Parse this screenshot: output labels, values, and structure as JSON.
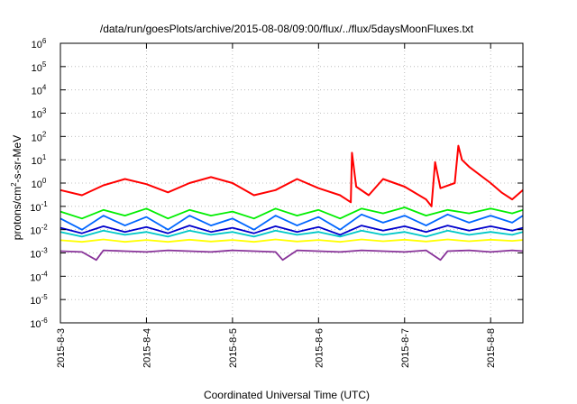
{
  "chart_data": {
    "type": "line",
    "title": "/data/run/goesPlots/archive/2015-08-08/09:00/flux/../flux/5daysMoonFluxes.txt",
    "xlabel": "Coordinated Universal Time (UTC)",
    "ylabel": "protons/cm²-s-sr-MeV",
    "yscale": "log",
    "ylim": [
      1e-06,
      1000000.0
    ],
    "xlim": [
      "2015-08-03T00:00",
      "2015-08-08T09:00"
    ],
    "grid": true,
    "legend": "none",
    "x_ticks": [
      "2015-8-3",
      "2015-8-4",
      "2015-8-5",
      "2015-8-6",
      "2015-8-7",
      "2015-8-8"
    ],
    "y_ticks": [
      {
        "base": "10",
        "exp": "-6"
      },
      {
        "base": "10",
        "exp": "-5"
      },
      {
        "base": "10",
        "exp": "-4"
      },
      {
        "base": "10",
        "exp": "-3"
      },
      {
        "base": "10",
        "exp": "-2"
      },
      {
        "base": "10",
        "exp": "-1"
      },
      {
        "base": "10",
        "exp": "0"
      },
      {
        "base": "10",
        "exp": "1"
      },
      {
        "base": "10",
        "exp": "2"
      },
      {
        "base": "10",
        "exp": "3"
      },
      {
        "base": "10",
        "exp": "4"
      },
      {
        "base": "10",
        "exp": "5"
      },
      {
        "base": "10",
        "exp": "6"
      }
    ],
    "series": [
      {
        "color": "#ff0000",
        "x": [
          "2015-08-03T00:00",
          "2015-08-03T06:00",
          "2015-08-03T12:00",
          "2015-08-03T18:00",
          "2015-08-04T00:00",
          "2015-08-04T06:00",
          "2015-08-04T12:00",
          "2015-08-04T18:00",
          "2015-08-05T00:00",
          "2015-08-05T06:00",
          "2015-08-05T12:00",
          "2015-08-05T18:00",
          "2015-08-06T00:00",
          "2015-08-06T06:00",
          "2015-08-06T09:00",
          "2015-08-06T09:20",
          "2015-08-06T10:30",
          "2015-08-06T14:00",
          "2015-08-06T18:00",
          "2015-08-07T00:00",
          "2015-08-07T06:00",
          "2015-08-07T07:30",
          "2015-08-07T08:30",
          "2015-08-07T10:00",
          "2015-08-07T14:00",
          "2015-08-07T15:00",
          "2015-08-07T16:00",
          "2015-08-07T18:00",
          "2015-08-08T00:00",
          "2015-08-08T03:00",
          "2015-08-08T06:00",
          "2015-08-08T09:00"
        ],
        "y": [
          0.5,
          0.3,
          0.8,
          1.5,
          0.9,
          0.4,
          1.0,
          1.8,
          1.0,
          0.3,
          0.5,
          1.5,
          0.6,
          0.3,
          0.15,
          20,
          0.7,
          0.3,
          1.5,
          0.7,
          0.2,
          0.1,
          8,
          0.6,
          1.0,
          40,
          10,
          5,
          1.0,
          0.4,
          0.2,
          0.5
        ]
      },
      {
        "color": "#00ee00",
        "x": [
          "2015-08-03T00:00",
          "2015-08-03T06:00",
          "2015-08-03T12:00",
          "2015-08-03T18:00",
          "2015-08-04T00:00",
          "2015-08-04T06:00",
          "2015-08-04T12:00",
          "2015-08-04T18:00",
          "2015-08-05T00:00",
          "2015-08-05T06:00",
          "2015-08-05T12:00",
          "2015-08-05T18:00",
          "2015-08-06T00:00",
          "2015-08-06T06:00",
          "2015-08-06T12:00",
          "2015-08-06T18:00",
          "2015-08-07T00:00",
          "2015-08-07T06:00",
          "2015-08-07T12:00",
          "2015-08-07T18:00",
          "2015-08-08T00:00",
          "2015-08-08T06:00",
          "2015-08-08T09:00"
        ],
        "y": [
          0.06,
          0.03,
          0.07,
          0.04,
          0.08,
          0.03,
          0.07,
          0.04,
          0.06,
          0.03,
          0.08,
          0.04,
          0.07,
          0.03,
          0.08,
          0.05,
          0.09,
          0.04,
          0.07,
          0.05,
          0.08,
          0.05,
          0.07
        ]
      },
      {
        "color": "#00c8c8",
        "x": [
          "2015-08-03T00:00",
          "2015-08-03T06:00",
          "2015-08-03T12:00",
          "2015-08-03T18:00",
          "2015-08-04T00:00",
          "2015-08-04T06:00",
          "2015-08-04T12:00",
          "2015-08-04T18:00",
          "2015-08-05T00:00",
          "2015-08-05T06:00",
          "2015-08-05T12:00",
          "2015-08-05T18:00",
          "2015-08-06T00:00",
          "2015-08-06T06:00",
          "2015-08-06T12:00",
          "2015-08-06T18:00",
          "2015-08-07T00:00",
          "2015-08-07T06:00",
          "2015-08-07T12:00",
          "2015-08-07T18:00",
          "2015-08-08T00:00",
          "2015-08-08T06:00",
          "2015-08-08T09:00"
        ],
        "y": [
          0.008,
          0.005,
          0.009,
          0.006,
          0.008,
          0.005,
          0.009,
          0.006,
          0.008,
          0.005,
          0.009,
          0.006,
          0.008,
          0.005,
          0.009,
          0.006,
          0.008,
          0.005,
          0.009,
          0.006,
          0.008,
          0.006,
          0.008
        ]
      },
      {
        "color": "#0066ff",
        "x": [
          "2015-08-03T00:00",
          "2015-08-03T06:00",
          "2015-08-03T12:00",
          "2015-08-03T18:00",
          "2015-08-04T00:00",
          "2015-08-04T06:00",
          "2015-08-04T12:00",
          "2015-08-04T18:00",
          "2015-08-05T00:00",
          "2015-08-05T06:00",
          "2015-08-05T12:00",
          "2015-08-05T18:00",
          "2015-08-06T00:00",
          "2015-08-06T06:00",
          "2015-08-06T12:00",
          "2015-08-06T18:00",
          "2015-08-07T00:00",
          "2015-08-07T06:00",
          "2015-08-07T12:00",
          "2015-08-07T18:00",
          "2015-08-08T00:00",
          "2015-08-08T06:00",
          "2015-08-08T09:00"
        ],
        "y": [
          0.03,
          0.01,
          0.04,
          0.015,
          0.035,
          0.01,
          0.04,
          0.015,
          0.03,
          0.01,
          0.04,
          0.015,
          0.035,
          0.01,
          0.045,
          0.02,
          0.04,
          0.015,
          0.045,
          0.02,
          0.04,
          0.02,
          0.04
        ]
      },
      {
        "color": "#0000cc",
        "x": [
          "2015-08-03T00:00",
          "2015-08-03T06:00",
          "2015-08-03T12:00",
          "2015-08-03T18:00",
          "2015-08-04T00:00",
          "2015-08-04T06:00",
          "2015-08-04T12:00",
          "2015-08-04T18:00",
          "2015-08-05T00:00",
          "2015-08-05T06:00",
          "2015-08-05T12:00",
          "2015-08-05T18:00",
          "2015-08-06T00:00",
          "2015-08-06T06:00",
          "2015-08-06T12:00",
          "2015-08-06T18:00",
          "2015-08-07T00:00",
          "2015-08-07T06:00",
          "2015-08-07T12:00",
          "2015-08-07T18:00",
          "2015-08-08T00:00",
          "2015-08-08T06:00",
          "2015-08-08T09:00"
        ],
        "y": [
          0.012,
          0.007,
          0.014,
          0.008,
          0.013,
          0.007,
          0.015,
          0.008,
          0.012,
          0.007,
          0.014,
          0.008,
          0.013,
          0.006,
          0.015,
          0.009,
          0.014,
          0.008,
          0.015,
          0.009,
          0.014,
          0.009,
          0.012
        ]
      },
      {
        "color": "#ffff00",
        "x": [
          "2015-08-03T00:00",
          "2015-08-03T06:00",
          "2015-08-03T12:00",
          "2015-08-03T18:00",
          "2015-08-04T00:00",
          "2015-08-04T06:00",
          "2015-08-04T12:00",
          "2015-08-04T18:00",
          "2015-08-05T00:00",
          "2015-08-05T06:00",
          "2015-08-05T12:00",
          "2015-08-05T18:00",
          "2015-08-06T00:00",
          "2015-08-06T06:00",
          "2015-08-06T12:00",
          "2015-08-06T18:00",
          "2015-08-07T00:00",
          "2015-08-07T06:00",
          "2015-08-07T12:00",
          "2015-08-07T18:00",
          "2015-08-08T00:00",
          "2015-08-08T06:00",
          "2015-08-08T09:00"
        ],
        "y": [
          0.0035,
          0.003,
          0.0038,
          0.003,
          0.0036,
          0.003,
          0.0037,
          0.0031,
          0.0036,
          0.003,
          0.0038,
          0.0031,
          0.0036,
          0.003,
          0.0038,
          0.0032,
          0.0037,
          0.0031,
          0.0038,
          0.0032,
          0.0037,
          0.0033,
          0.0036
        ]
      },
      {
        "color": "#883399",
        "x": [
          "2015-08-03T00:00",
          "2015-08-03T06:00",
          "2015-08-03T10:00",
          "2015-08-03T12:00",
          "2015-08-03T18:00",
          "2015-08-04T00:00",
          "2015-08-04T06:00",
          "2015-08-04T12:00",
          "2015-08-04T18:00",
          "2015-08-05T00:00",
          "2015-08-05T06:00",
          "2015-08-05T12:00",
          "2015-08-05T14:00",
          "2015-08-05T18:00",
          "2015-08-06T00:00",
          "2015-08-06T06:00",
          "2015-08-06T12:00",
          "2015-08-06T18:00",
          "2015-08-07T00:00",
          "2015-08-07T06:00",
          "2015-08-07T10:00",
          "2015-08-07T12:00",
          "2015-08-07T18:00",
          "2015-08-08T00:00",
          "2015-08-08T06:00",
          "2015-08-08T09:00"
        ],
        "y": [
          0.0012,
          0.0011,
          0.0005,
          0.0013,
          0.0012,
          0.0011,
          0.0013,
          0.0012,
          0.0011,
          0.0013,
          0.0012,
          0.0011,
          0.0005,
          0.0013,
          0.0012,
          0.0011,
          0.0013,
          0.0012,
          0.0011,
          0.0013,
          0.0005,
          0.0012,
          0.0013,
          0.0011,
          0.0013,
          0.0012
        ]
      }
    ]
  }
}
